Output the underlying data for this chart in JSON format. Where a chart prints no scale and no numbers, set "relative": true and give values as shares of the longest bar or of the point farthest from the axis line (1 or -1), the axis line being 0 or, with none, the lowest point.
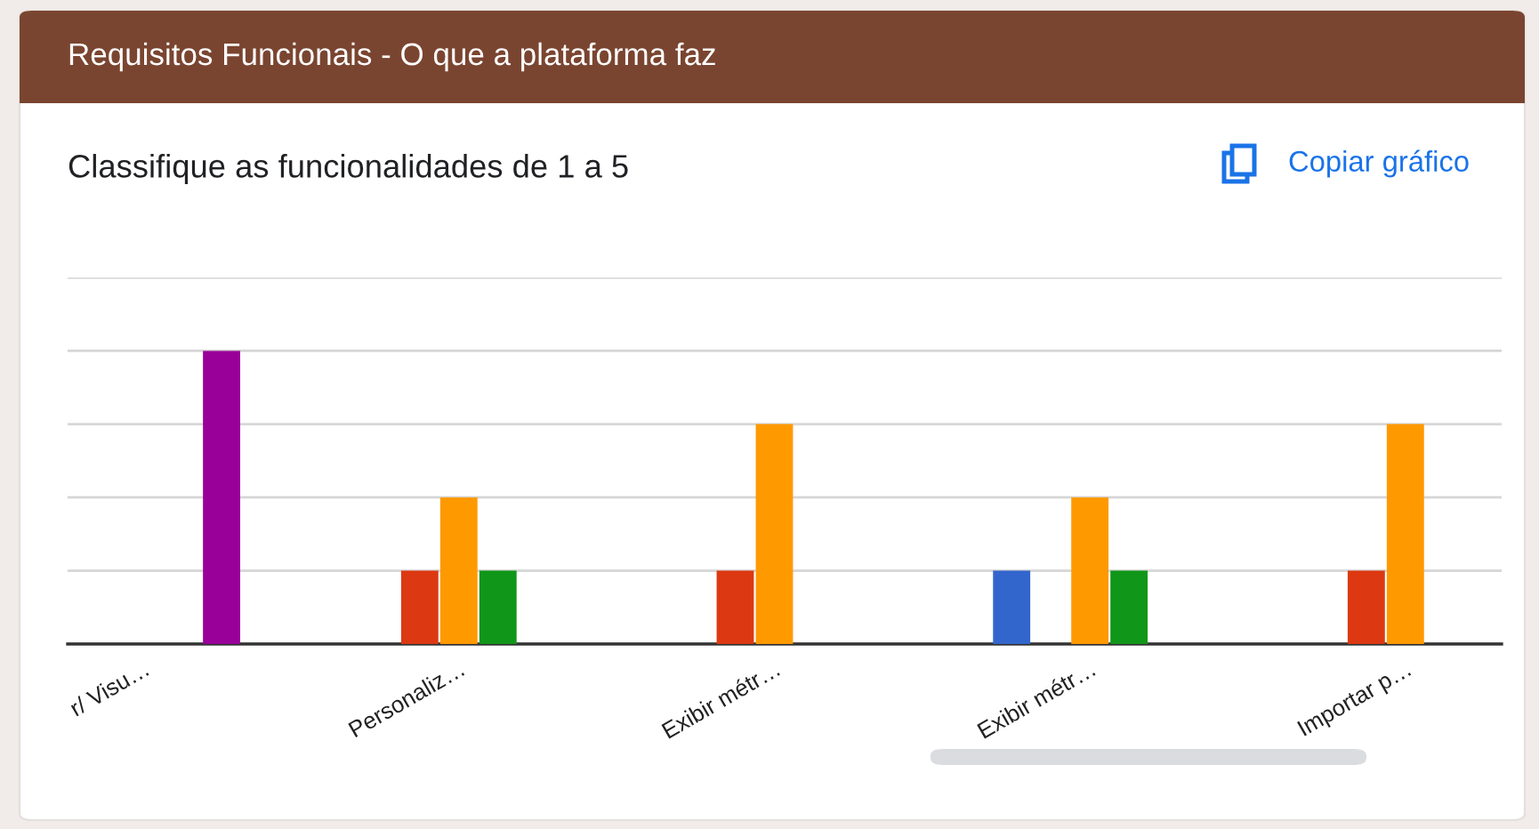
{
  "chart_data": {
    "type": "bar",
    "title": "Requisitos Funcionais - O que a plataforma faz",
    "subtitle": "Classifique as funcionalidades de 1 a 5",
    "annotations": [
      "Copiar gráfico"
    ],
    "categories": [
      "r/ Visu…",
      "Personaliz…",
      "Exibir métr…",
      "Exibir métr…",
      "Importar p…"
    ],
    "relative": true,
    "series": [
      {
        "color": "#3366cc",
        "values": [
          0,
          0,
          0,
          0.25,
          0
        ]
      },
      {
        "color": "#dc3912",
        "values": [
          0,
          0.25,
          0.25,
          0,
          0.25
        ]
      },
      {
        "color": "#ff9900",
        "values": [
          0,
          0.5,
          0.75,
          0.5,
          0.75
        ]
      },
      {
        "color": "#109618",
        "values": [
          0,
          0.25,
          0,
          0.25,
          0
        ]
      },
      {
        "color": "#990099",
        "values": [
          1,
          0,
          0,
          0,
          0
        ]
      }
    ],
    "grid": "y"
  }
}
